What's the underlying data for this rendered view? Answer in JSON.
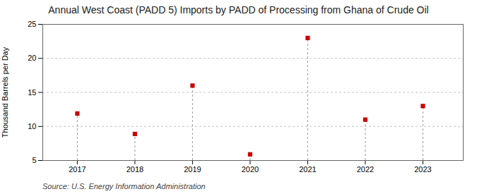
{
  "chart_data": {
    "type": "scatter",
    "title": "Annual West Coast (PADD 5) Imports by PADD of Processing from Ghana of Crude Oil",
    "ylabel": "Thousand Barrels per Day",
    "source": "Source: U.S. Energy Information Administration",
    "x": [
      2017,
      2018,
      2019,
      2020,
      2021,
      2022,
      2023
    ],
    "values": [
      11.9,
      8.9,
      16.0,
      5.9,
      23.0,
      11.0,
      13.0
    ],
    "color": "#cc0000",
    "marker": "square",
    "xlim": [
      2016.4,
      2023.7
    ],
    "xticks": [
      2017,
      2018,
      2019,
      2020,
      2021,
      2022,
      2023
    ],
    "ylim": [
      5,
      25
    ],
    "yticks": [
      5,
      10,
      15,
      20,
      25
    ],
    "grid": true
  }
}
